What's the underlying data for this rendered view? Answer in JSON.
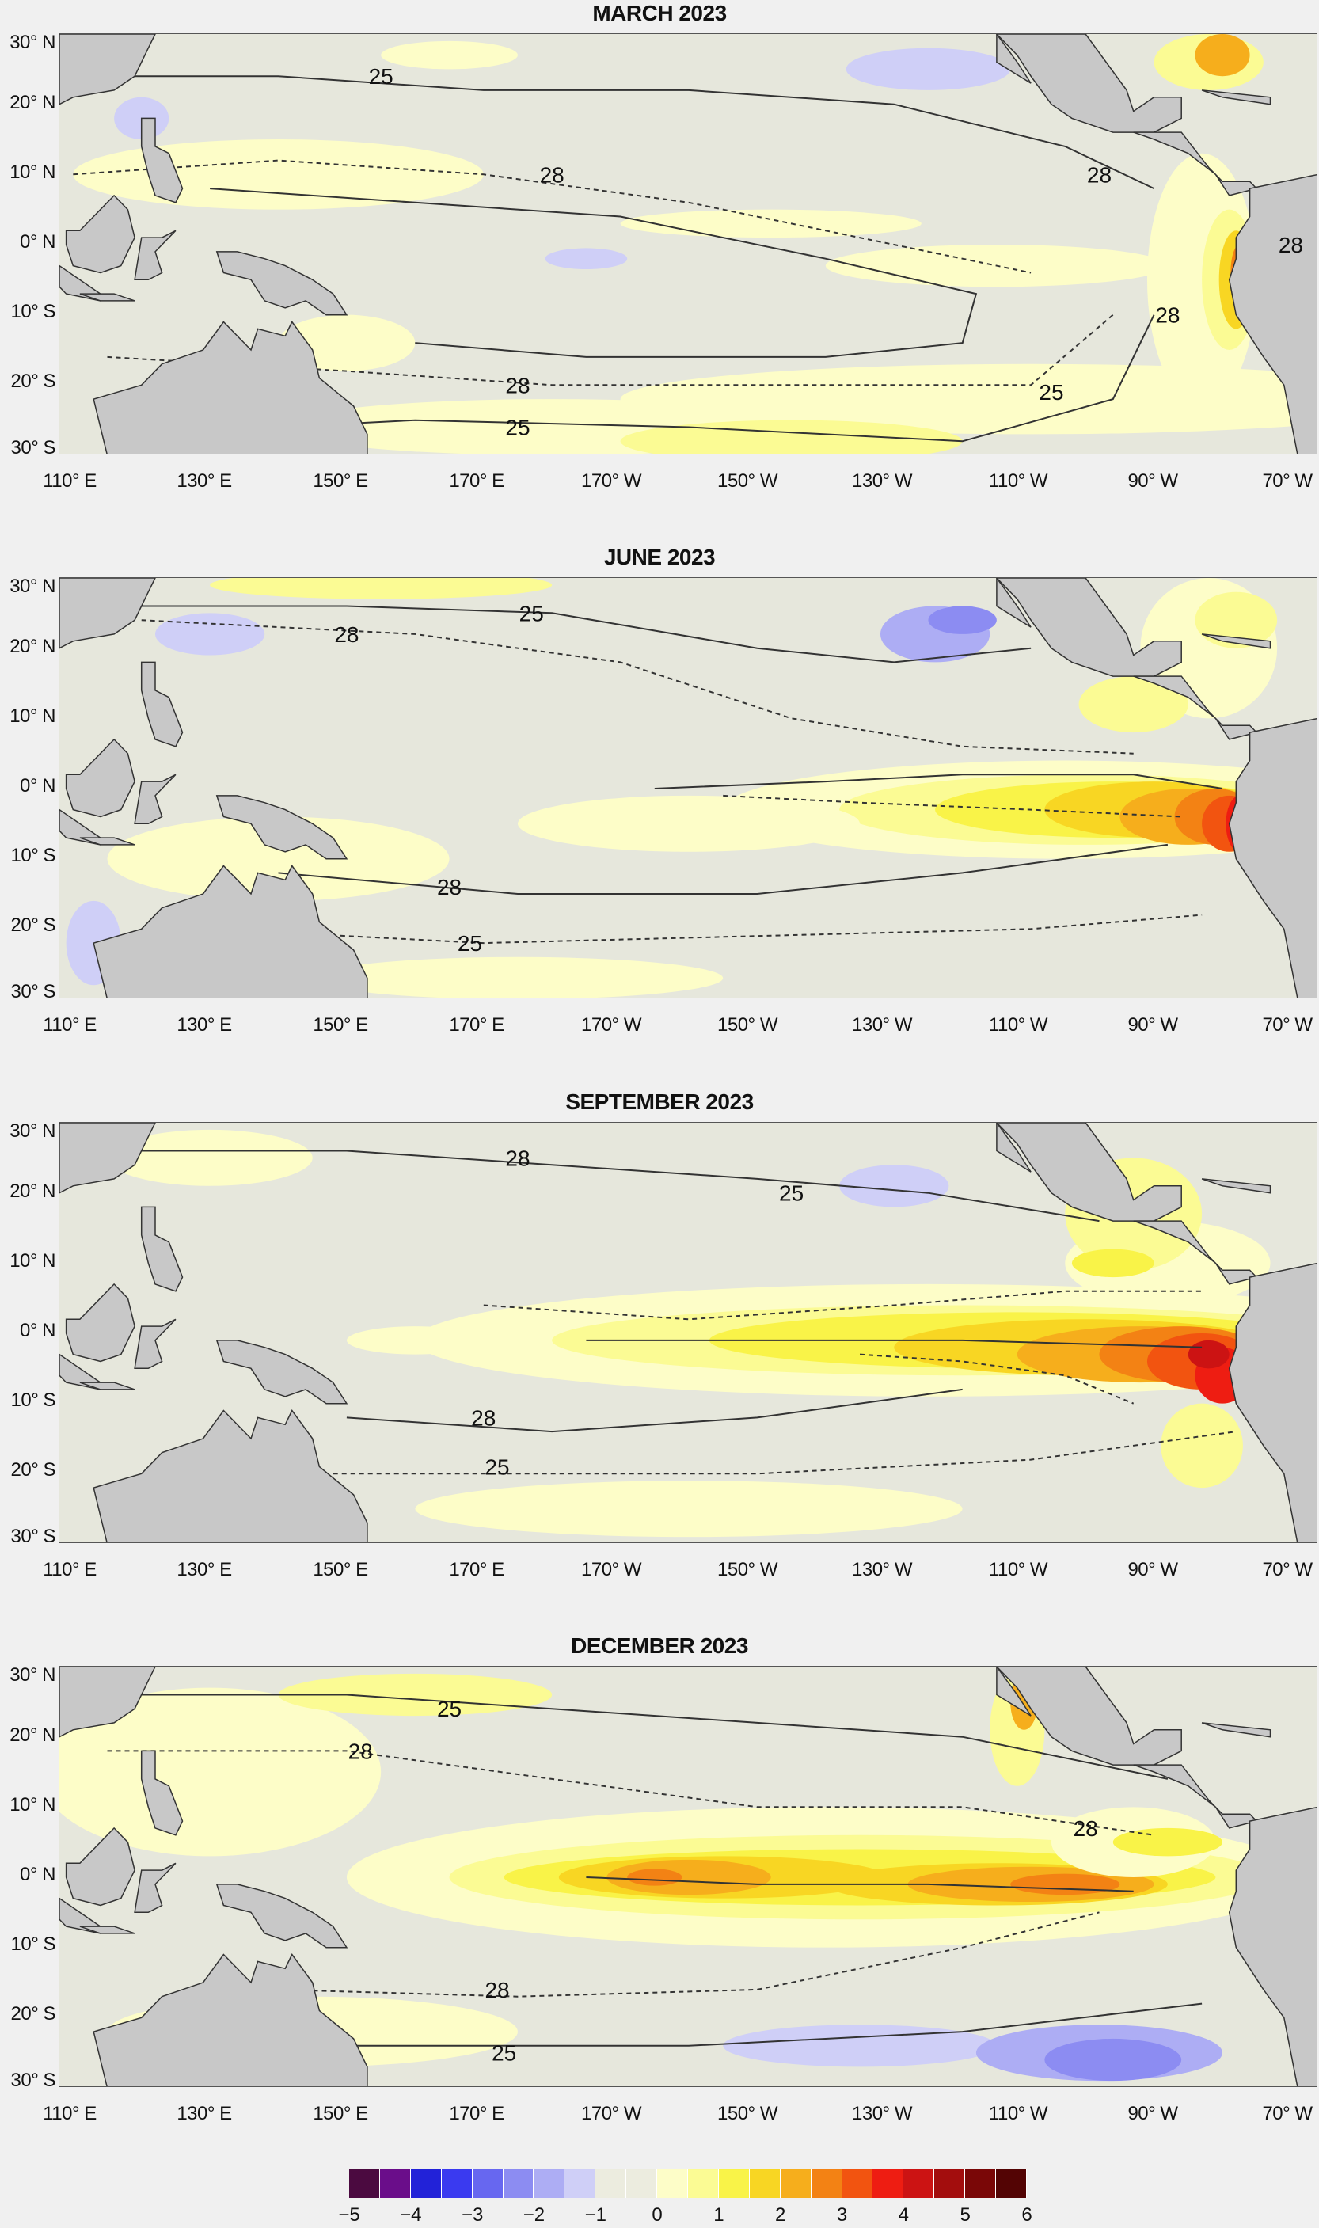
{
  "panels": [
    {
      "title": "MARCH 2023",
      "contour_labels": [
        "25",
        "28",
        "28",
        "28",
        "28",
        "28",
        "25",
        "25"
      ],
      "anomaly_pattern": "weak warming along South American coast"
    },
    {
      "title": "JUNE 2023",
      "contour_labels": [
        "28",
        "25",
        "28",
        "25"
      ],
      "anomaly_pattern": "strong warming near coast of Ecuador and Peru"
    },
    {
      "title": "SEPTEMBER 2023",
      "contour_labels": [
        "28",
        "25",
        "28",
        "25"
      ],
      "anomaly_pattern": "warm tongue extends west along equator"
    },
    {
      "title": "DECEMBER 2023",
      "contour_labels": [
        "25",
        "28",
        "28",
        "28",
        "25"
      ],
      "anomaly_pattern": "warm anomaly across central and eastern equatorial Pacific"
    }
  ],
  "lat_labels": [
    "30° N",
    "20° N",
    "10° N",
    "0° N",
    "10° S",
    "20° S",
    "30° S"
  ],
  "lon_labels": [
    "110° E",
    "130° E",
    "150° E",
    "170° E",
    "170° W",
    "150° W",
    "130° W",
    "110° W",
    "90° W",
    "70° W"
  ],
  "legend": {
    "ticks": [
      "−5",
      "−4",
      "−3",
      "−2",
      "−1",
      "0",
      "1",
      "2",
      "3",
      "4",
      "5",
      "6"
    ],
    "colors": [
      "#4b0a40",
      "#6a0d8a",
      "#2222d8",
      "#3a3af0",
      "#6767f0",
      "#8c8cf2",
      "#adadf4",
      "#cfcff7",
      "#ececdf",
      "#ececdf",
      "#fdfdc8",
      "#fbfb94",
      "#f9f348",
      "#f8d623",
      "#f6ae1c",
      "#f38214",
      "#f25410",
      "#ee1d12",
      "#cc1313",
      "#a30d0d",
      "#7a0707",
      "#530404"
    ]
  },
  "colors": {
    "land": "#c8c8c8",
    "ocean_neutral": "#e6e7dc",
    "contour": "#333333"
  }
}
